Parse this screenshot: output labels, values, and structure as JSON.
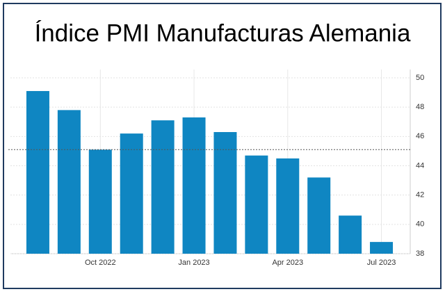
{
  "chart_data": {
    "type": "bar",
    "title": "Índice PMI Manufacturas Alemania",
    "categories": [
      null,
      null,
      "Oct 2022",
      null,
      null,
      "Jan 2023",
      null,
      null,
      "Apr 2023",
      null,
      null,
      "Jul 2023"
    ],
    "values": [
      49.1,
      47.8,
      45.1,
      46.2,
      47.1,
      47.3,
      46.3,
      44.7,
      44.5,
      43.2,
      40.6,
      38.8
    ],
    "color": "#0f86c2",
    "ylim": [
      38,
      50
    ],
    "yticks": [
      38,
      40,
      42,
      44,
      46,
      48,
      50
    ],
    "grid": true,
    "reference_line": 45.1
  }
}
